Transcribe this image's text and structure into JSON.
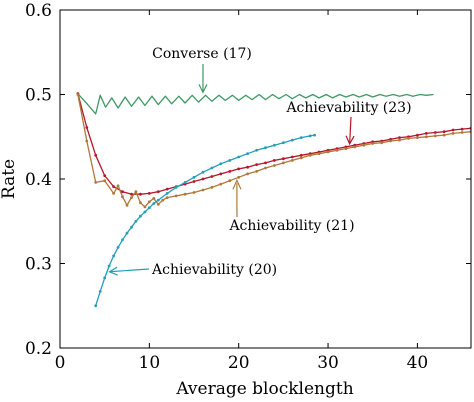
{
  "chart_data": {
    "type": "line",
    "xlabel": "Average blocklength",
    "ylabel": "Rate",
    "xlim": [
      0,
      46
    ],
    "ylim": [
      0.2,
      0.6
    ],
    "x_ticks": [
      0,
      10,
      20,
      30,
      40
    ],
    "y_ticks": [
      0.2,
      0.3,
      0.4,
      0.5,
      0.6
    ],
    "x_tick_labels": [
      "0",
      "10",
      "20",
      "30",
      "40"
    ],
    "y_tick_labels": [
      "0.2",
      "0.3",
      "0.4",
      "0.5",
      "0.6"
    ],
    "grid": false,
    "series": [
      {
        "name": "Converse (17)",
        "color": "#3f9a64",
        "marker": "none",
        "points": [
          [
            2.0,
            0.501
          ],
          [
            3.1,
            0.488
          ],
          [
            4.0,
            0.477
          ],
          [
            4.5,
            0.499
          ],
          [
            5.1,
            0.485
          ],
          [
            5.8,
            0.496
          ],
          [
            6.5,
            0.484
          ],
          [
            7.3,
            0.497
          ],
          [
            8.0,
            0.486
          ],
          [
            8.8,
            0.497
          ],
          [
            9.5,
            0.487
          ],
          [
            10.3,
            0.498
          ],
          [
            11.0,
            0.488
          ],
          [
            11.8,
            0.498
          ],
          [
            12.5,
            0.489
          ],
          [
            13.3,
            0.498
          ],
          [
            14.0,
            0.49
          ],
          [
            14.8,
            0.499
          ],
          [
            15.5,
            0.491
          ],
          [
            16.3,
            0.499
          ],
          [
            17.0,
            0.492
          ],
          [
            17.8,
            0.499
          ],
          [
            18.5,
            0.493
          ],
          [
            19.3,
            0.499
          ],
          [
            20.0,
            0.493
          ],
          [
            20.8,
            0.499
          ],
          [
            21.5,
            0.494
          ],
          [
            22.3,
            0.5
          ],
          [
            23.0,
            0.494
          ],
          [
            23.8,
            0.5
          ],
          [
            24.5,
            0.495
          ],
          [
            25.3,
            0.5
          ],
          [
            26.0,
            0.495
          ],
          [
            26.8,
            0.5
          ],
          [
            27.5,
            0.496
          ],
          [
            28.3,
            0.5
          ],
          [
            29.0,
            0.496
          ],
          [
            29.8,
            0.5
          ],
          [
            30.5,
            0.496
          ],
          [
            31.3,
            0.5
          ],
          [
            32.0,
            0.497
          ],
          [
            32.8,
            0.5
          ],
          [
            33.5,
            0.497
          ],
          [
            34.3,
            0.5
          ],
          [
            35.0,
            0.497
          ],
          [
            35.8,
            0.5
          ],
          [
            36.5,
            0.498
          ],
          [
            37.3,
            0.5
          ],
          [
            38.0,
            0.498
          ],
          [
            38.8,
            0.5
          ],
          [
            39.5,
            0.498
          ],
          [
            40.3,
            0.5
          ],
          [
            41.0,
            0.499
          ],
          [
            41.8,
            0.5
          ]
        ]
      },
      {
        "name": "Achievability (23)",
        "color": "#b5182c",
        "marker": "dot",
        "points": [
          [
            2,
            0.501
          ],
          [
            3,
            0.461
          ],
          [
            4,
            0.428
          ],
          [
            5,
            0.404
          ],
          [
            6,
            0.391
          ],
          [
            7,
            0.385
          ],
          [
            8,
            0.382
          ],
          [
            9,
            0.382
          ],
          [
            10,
            0.383
          ],
          [
            11,
            0.385
          ],
          [
            12,
            0.388
          ],
          [
            13,
            0.391
          ],
          [
            14,
            0.394
          ],
          [
            15,
            0.397
          ],
          [
            16,
            0.4
          ],
          [
            17,
            0.403
          ],
          [
            18,
            0.406
          ],
          [
            19,
            0.409
          ],
          [
            20,
            0.412
          ],
          [
            21,
            0.414
          ],
          [
            22,
            0.417
          ],
          [
            23,
            0.419
          ],
          [
            24,
            0.422
          ],
          [
            25,
            0.424
          ],
          [
            26,
            0.426
          ],
          [
            27,
            0.428
          ],
          [
            28,
            0.43
          ],
          [
            29,
            0.432
          ],
          [
            30,
            0.434
          ],
          [
            31,
            0.436
          ],
          [
            32,
            0.438
          ],
          [
            33,
            0.44
          ],
          [
            34,
            0.442
          ],
          [
            35,
            0.444
          ],
          [
            36,
            0.445
          ],
          [
            37,
            0.447
          ],
          [
            38,
            0.449
          ],
          [
            39,
            0.45
          ],
          [
            40,
            0.452
          ],
          [
            41,
            0.454
          ],
          [
            42,
            0.455
          ],
          [
            43,
            0.456
          ],
          [
            44,
            0.458
          ],
          [
            45,
            0.459
          ],
          [
            46,
            0.46
          ]
        ]
      },
      {
        "name": "Achievability (21)",
        "color": "#b07838",
        "marker": "dot",
        "points": [
          [
            2.0,
            0.5
          ],
          [
            3.0,
            0.445
          ],
          [
            4.0,
            0.396
          ],
          [
            5.0,
            0.398
          ],
          [
            6.0,
            0.383
          ],
          [
            6.5,
            0.392
          ],
          [
            7.0,
            0.379
          ],
          [
            7.5,
            0.369
          ],
          [
            8.0,
            0.378
          ],
          [
            8.5,
            0.385
          ],
          [
            9.0,
            0.372
          ],
          [
            9.5,
            0.367
          ],
          [
            10.0,
            0.373
          ],
          [
            10.5,
            0.377
          ],
          [
            11.0,
            0.37
          ],
          [
            11.5,
            0.375
          ],
          [
            12.0,
            0.378
          ],
          [
            13.0,
            0.38
          ],
          [
            14.0,
            0.382
          ],
          [
            15.0,
            0.384
          ],
          [
            16.0,
            0.387
          ],
          [
            17.0,
            0.39
          ],
          [
            18.0,
            0.394
          ],
          [
            19.0,
            0.398
          ],
          [
            20.0,
            0.402
          ],
          [
            21.0,
            0.406
          ],
          [
            22.0,
            0.409
          ],
          [
            23.0,
            0.413
          ],
          [
            24.0,
            0.416
          ],
          [
            25.0,
            0.419
          ],
          [
            26.0,
            0.422
          ],
          [
            27.0,
            0.425
          ],
          [
            28.0,
            0.428
          ],
          [
            29.0,
            0.43
          ],
          [
            30.0,
            0.432
          ],
          [
            31.0,
            0.434
          ],
          [
            32.0,
            0.436
          ],
          [
            33.0,
            0.438
          ],
          [
            34.0,
            0.44
          ],
          [
            35.0,
            0.442
          ],
          [
            36.0,
            0.443
          ],
          [
            37.0,
            0.445
          ],
          [
            38.0,
            0.446
          ],
          [
            39.0,
            0.448
          ],
          [
            40.0,
            0.449
          ],
          [
            41.0,
            0.45
          ],
          [
            42.0,
            0.451
          ],
          [
            43.0,
            0.452
          ],
          [
            44.0,
            0.454
          ],
          [
            45.0,
            0.455
          ],
          [
            46.0,
            0.456
          ]
        ]
      },
      {
        "name": "Achievability (20)",
        "color": "#23a0b8",
        "marker": "dot",
        "points": [
          [
            4.0,
            0.25
          ],
          [
            4.5,
            0.267
          ],
          [
            5.0,
            0.283
          ],
          [
            5.5,
            0.297
          ],
          [
            6.0,
            0.309
          ],
          [
            6.5,
            0.319
          ],
          [
            7.0,
            0.328
          ],
          [
            7.5,
            0.336
          ],
          [
            8.0,
            0.343
          ],
          [
            8.5,
            0.35
          ],
          [
            9.0,
            0.356
          ],
          [
            9.5,
            0.361
          ],
          [
            10.0,
            0.366
          ],
          [
            10.5,
            0.371
          ],
          [
            11.0,
            0.375
          ],
          [
            12.0,
            0.383
          ],
          [
            13.0,
            0.39
          ],
          [
            14.0,
            0.396
          ],
          [
            15.0,
            0.402
          ],
          [
            16.0,
            0.408
          ],
          [
            17.0,
            0.413
          ],
          [
            18.0,
            0.418
          ],
          [
            19.0,
            0.422
          ],
          [
            20.0,
            0.426
          ],
          [
            21.0,
            0.43
          ],
          [
            22.0,
            0.434
          ],
          [
            23.0,
            0.437
          ],
          [
            24.0,
            0.44
          ],
          [
            25.0,
            0.443
          ],
          [
            26.0,
            0.446
          ],
          [
            27.0,
            0.449
          ],
          [
            28.0,
            0.451
          ],
          [
            28.5,
            0.452
          ]
        ]
      }
    ],
    "annotations": [
      {
        "text": "Converse (17)",
        "series": "Converse (17)",
        "arrow_to": [
          16,
          0.499
        ]
      },
      {
        "text": "Achievability (23)",
        "series": "Achievability (23)",
        "arrow_to": [
          32.4,
          0.438
        ]
      },
      {
        "text": "Achievability (21)",
        "series": "Achievability (21)",
        "arrow_to": [
          19.8,
          0.402
        ]
      },
      {
        "text": "Achievability (20)",
        "series": "Achievability (20)",
        "arrow_to": [
          5.2,
          0.29
        ]
      }
    ]
  }
}
